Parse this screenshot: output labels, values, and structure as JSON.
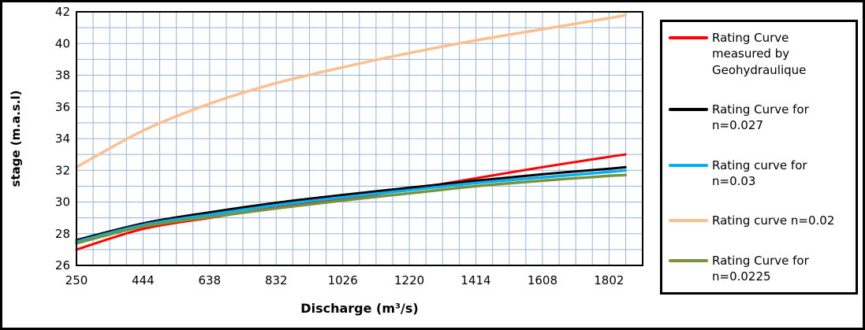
{
  "chart_data": {
    "type": "line",
    "xlabel": "Discharge (m³/s)",
    "ylabel": "stage (m.a.s.l)",
    "xlim": [
      250,
      1900
    ],
    "ylim": [
      26,
      42
    ],
    "xticks": [
      250,
      444,
      638,
      832,
      1026,
      1220,
      1414,
      1608,
      1802
    ],
    "yticks": [
      26,
      28,
      30,
      32,
      34,
      36,
      38,
      40,
      42
    ],
    "minor_x_step": 48.5,
    "minor_y_step": 1,
    "grid_color": "#95B3D7",
    "grid_on": true,
    "legend_position": "right",
    "x": [
      250,
      444,
      638,
      832,
      1026,
      1220,
      1414,
      1608,
      1802,
      1850
    ],
    "series": [
      {
        "name": "Rating Curve measured by Geohydraulique",
        "color": "#FF0000",
        "width": 3,
        "values": [
          27.0,
          28.3,
          29.0,
          29.65,
          30.2,
          30.8,
          31.5,
          32.2,
          32.85,
          33.0
        ]
      },
      {
        "name": "Rating Curve for n=0.027",
        "color": "#000000",
        "width": 3,
        "values": [
          27.6,
          28.65,
          29.35,
          29.95,
          30.45,
          30.9,
          31.35,
          31.75,
          32.1,
          32.2
        ]
      },
      {
        "name": "Rating curve for n=0.03",
        "color": "#00B0F0",
        "width": 3.5,
        "values": [
          27.5,
          28.55,
          29.2,
          29.8,
          30.3,
          30.75,
          31.2,
          31.55,
          31.9,
          32.0
        ]
      },
      {
        "name": "Rating curve n=0.02",
        "color": "#FAC08F",
        "width": 3.5,
        "values": [
          32.2,
          34.5,
          36.2,
          37.5,
          38.5,
          39.4,
          40.2,
          40.9,
          41.6,
          41.8
        ]
      },
      {
        "name": "Rating Curve for n=0.0225",
        "color": "#77933C",
        "width": 3.5,
        "values": [
          27.4,
          28.45,
          29.05,
          29.6,
          30.1,
          30.55,
          31.0,
          31.35,
          31.65,
          31.7
        ]
      }
    ]
  },
  "legend": {
    "items": [
      {
        "label": "Rating Curve measured by Geohydraulique",
        "color": "#FF0000"
      },
      {
        "label": "Rating Curve for n=0.027",
        "color": "#000000"
      },
      {
        "label": "Rating curve for n=0.03",
        "color": "#00B0F0"
      },
      {
        "label": "Rating curve n=0.02",
        "color": "#FAC08F"
      },
      {
        "label": "Rating Curve for n=0.0225",
        "color": "#77933C"
      }
    ]
  }
}
